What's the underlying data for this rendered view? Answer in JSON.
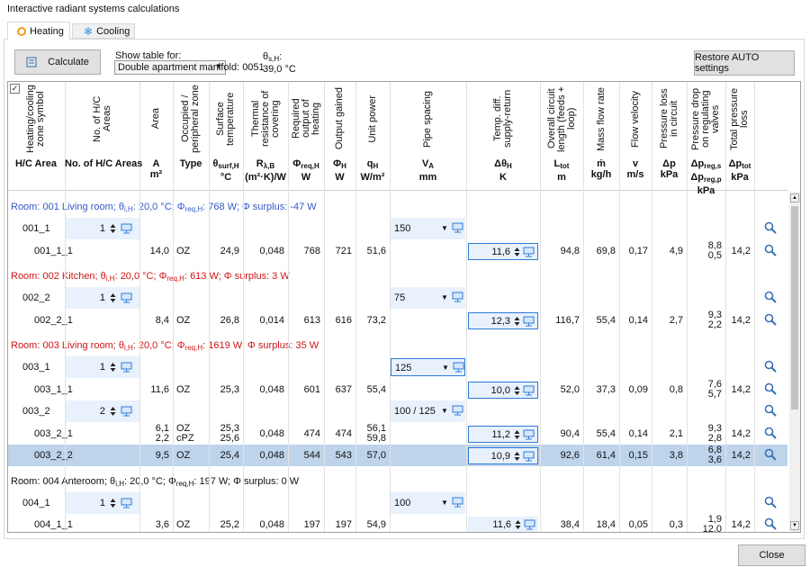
{
  "window": {
    "title": "Interactive radiant systems calculations"
  },
  "tabs": [
    {
      "label": "Heating",
      "active": true
    },
    {
      "label": "Cooling",
      "active": false
    }
  ],
  "toolbar": {
    "calculate": "Calculate",
    "show_table_label": "Show table for:",
    "show_table_value": "Double apartment manifold: 0051",
    "supply_temp_label": [
      "θ",
      "s,H",
      ":"
    ],
    "supply_temp_value": "39,0 °C",
    "restore": "Restore AUTO settings"
  },
  "table": {
    "columns": [
      {
        "key": "symbol",
        "title": "Heating/cooling zone symbol",
        "sym": [
          [
            "H/C Area"
          ]
        ]
      },
      {
        "key": "count",
        "title": "No. of H/C Areas",
        "sym": [
          [
            "No. of H/C Areas"
          ]
        ]
      },
      {
        "key": "area",
        "title": "Area",
        "sym": [
          [
            "A"
          ]
        ],
        "unit": "m²"
      },
      {
        "key": "type",
        "title": "Occupied / peripheral zone",
        "sym": [
          [
            "Type"
          ]
        ]
      },
      {
        "key": "t_surf",
        "title": "Surface temperature",
        "sym": [
          [
            "θ",
            "surf,H"
          ]
        ],
        "unit": "°C"
      },
      {
        "key": "r",
        "title": "Thermal resistance of covering",
        "sym": [
          [
            "R",
            "λ,B"
          ]
        ],
        "unit": "(m²·K)/W"
      },
      {
        "key": "req",
        "title": "Required output of heating",
        "sym": [
          [
            "Φ",
            "req,H"
          ]
        ],
        "unit": "W"
      },
      {
        "key": "gained",
        "title": "Output gained",
        "sym": [
          [
            "Φ",
            "H"
          ]
        ],
        "unit": "W"
      },
      {
        "key": "unit",
        "title": "Unit power",
        "sym": [
          [
            "q",
            "H"
          ]
        ],
        "unit": "W/m²"
      },
      {
        "key": "spacing",
        "title": "Pipe spacing",
        "sym": [
          [
            "V",
            "A"
          ]
        ],
        "unit": "mm"
      },
      {
        "key": "dtheta",
        "title": "Temp. diff. supply-return",
        "sym": [
          [
            "Δθ",
            "H"
          ]
        ],
        "unit": "K"
      },
      {
        "key": "length",
        "title": "Overall circuit length (feeds + loop)",
        "sym": [
          [
            "L",
            "tot"
          ]
        ],
        "unit": "m"
      },
      {
        "key": "mass",
        "title": "Mass flow rate",
        "sym": [
          [
            "ṁ"
          ]
        ],
        "unit": "kg/h"
      },
      {
        "key": "v",
        "title": "Flow velocity",
        "sym": [
          [
            "v"
          ]
        ],
        "unit": "m/s"
      },
      {
        "key": "dp",
        "title": "Pressure loss in circuit",
        "sym": [
          [
            "Δp"
          ]
        ],
        "unit": "kPa"
      },
      {
        "key": "dpreg",
        "title": "Pressure drop on regulating valves",
        "sym": [
          [
            "Δp",
            "reg,s"
          ],
          [
            "Δp",
            "reg,p"
          ]
        ],
        "unit": "kPa"
      },
      {
        "key": "dptot",
        "title": "Total pressure loss",
        "sym": [
          [
            "Δp",
            "tot"
          ]
        ],
        "unit": "kPa"
      }
    ],
    "rooms": [
      {
        "heading": [
          "Room: 001 Living room; θ",
          "i,H",
          ": 20,0 °C; Φ",
          "req,H",
          ": 768 W; Φ surplus: -47 W"
        ],
        "color": "#3558c8",
        "rows": [
          {
            "symbol": "001_1",
            "count": "1",
            "spacing": "150"
          },
          {
            "symbol": "001_1_1",
            "area": "14,0",
            "type": "OZ",
            "t_surf": "24,9",
            "r": "0,048",
            "req": "768",
            "gained": "721",
            "unit": "51,6",
            "dtheta": "11,6",
            "length": "94,8",
            "mass": "69,8",
            "v": "0,17",
            "dp": "4,9",
            "dpreg": [
              "8,8",
              "0,5"
            ],
            "dptot": "14,2"
          }
        ]
      },
      {
        "heading": [
          "Room: 002 Kitchen; θ",
          "i,H",
          ": 20,0 °C; Φ",
          "req,H",
          ": 613 W; Φ surplus: 3 W"
        ],
        "color": "#d01414",
        "rows": [
          {
            "symbol": "002_2",
            "count": "1",
            "spacing": "75"
          },
          {
            "symbol": "002_2_1",
            "area": "8,4",
            "type": "OZ",
            "t_surf": "26,8",
            "r": "0,014",
            "req": "613",
            "gained": "616",
            "unit": "73,2",
            "dtheta": "12,3",
            "length": "116,7",
            "mass": "55,4",
            "v": "0,14",
            "dp": "2,7",
            "dpreg": [
              "9,3",
              "2,2"
            ],
            "dptot": "14,2"
          }
        ]
      },
      {
        "heading": [
          "Room: 003 Living room; θ",
          "i,H",
          ": 20,0 °C; Φ",
          "req,H",
          ": 1619 W; Φ surplus: 35 W"
        ],
        "color": "#d01414",
        "rows": [
          {
            "symbol": "003_1",
            "count": "1",
            "spacing": "125",
            "focused": true
          },
          {
            "symbol": "003_1_1",
            "area": "11,6",
            "type": "OZ",
            "t_surf": "25,3",
            "r": "0,048",
            "req": "601",
            "gained": "637",
            "unit": "55,4",
            "dtheta": "10,0",
            "length": "52,0",
            "mass": "37,3",
            "v": "0,09",
            "dp": "0,8",
            "dpreg": [
              "7,6",
              "5,7"
            ],
            "dptot": "14,2"
          },
          {
            "symbol": "003_2",
            "count": "2",
            "spacing": "100 / 125"
          },
          {
            "symbol": "003_2_1",
            "area": [
              "6,1",
              "2,2"
            ],
            "type": [
              "OZ",
              "cPZ"
            ],
            "t_surf": [
              "25,3",
              "25,6"
            ],
            "r": "0,048",
            "req": "474",
            "gained": "474",
            "unit": [
              "56,1",
              "59,8"
            ],
            "dtheta": "11,2",
            "length": "90,4",
            "mass": "55,4",
            "v": "0,14",
            "dp": "2,1",
            "dpreg": [
              "9,3",
              "2,8"
            ],
            "dptot": "14,2"
          },
          {
            "symbol": "003_2_2",
            "selected": true,
            "area": "9,5",
            "type": "OZ",
            "t_surf": "25,4",
            "r": "0,048",
            "req": "544",
            "gained": "543",
            "unit": "57,0",
            "dtheta": "10,9",
            "length": "92,6",
            "mass": "61,4",
            "v": "0,15",
            "dp": "3,8",
            "dpreg": [
              "6,8",
              "3,6"
            ],
            "dptot": "14,2"
          }
        ]
      },
      {
        "heading": [
          "Room: 004 Anteroom; θ",
          "i,H",
          ": 20,0 °C; Φ",
          "req,H",
          ": 197 W; Φ surplus: 0 W"
        ],
        "color": "#111111",
        "rows": [
          {
            "symbol": "004_1",
            "count": "1",
            "spacing": "100"
          },
          {
            "symbol": "004_1_1",
            "area": "3,6",
            "type": "OZ",
            "t_surf": "25,2",
            "r": "0,048",
            "req": "197",
            "gained": "197",
            "unit": "54,9",
            "dtheta": "11,6",
            "dtheta_boxed": false,
            "length": "38,4",
            "mass": "18,4",
            "v": "0,05",
            "dp": "0,3",
            "dpreg": [
              "1,9",
              "12,0"
            ],
            "dptot": "14,2"
          }
        ]
      }
    ]
  },
  "footer": {
    "close": "Close"
  }
}
